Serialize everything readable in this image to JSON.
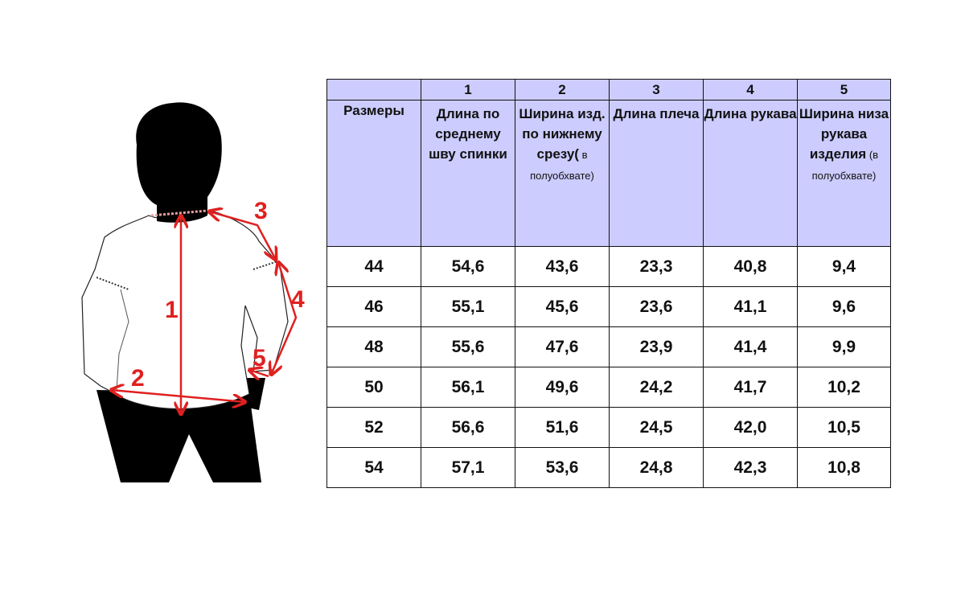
{
  "figure": {
    "labels": [
      "1",
      "2",
      "3",
      "4",
      "5"
    ],
    "colors": {
      "arrow": "#e02020",
      "silhouette": "#000000",
      "shirt": "#ffffff"
    }
  },
  "table": {
    "column_numbers": [
      "",
      "1",
      "2",
      "3",
      "4",
      "5"
    ],
    "headers": [
      {
        "bold": "Размеры",
        "small": ""
      },
      {
        "bold": "Длина по среднему шву спинки",
        "small": ""
      },
      {
        "bold": "Ширина изд. по нижнему срезу(",
        "small": " в полуобхвате)"
      },
      {
        "bold": "Длина плеча",
        "small": ""
      },
      {
        "bold": "Длина рукава",
        "small": ""
      },
      {
        "bold": "Ширина низа рукава изделия",
        "small": " (в полуобхвате)"
      }
    ],
    "rows": [
      [
        "44",
        "54,6",
        "43,6",
        "23,3",
        "40,8",
        "9,4"
      ],
      [
        "46",
        "55,1",
        "45,6",
        "23,6",
        "41,1",
        "9,6"
      ],
      [
        "48",
        "55,6",
        "47,6",
        "23,9",
        "41,4",
        "9,9"
      ],
      [
        "50",
        "56,1",
        "49,6",
        "24,2",
        "41,7",
        "10,2"
      ],
      [
        "52",
        "56,6",
        "51,6",
        "24,5",
        "42,0",
        "10,5"
      ],
      [
        "54",
        "57,1",
        "53,6",
        "24,8",
        "42,3",
        "10,8"
      ]
    ],
    "header_color": "#ccccff"
  }
}
